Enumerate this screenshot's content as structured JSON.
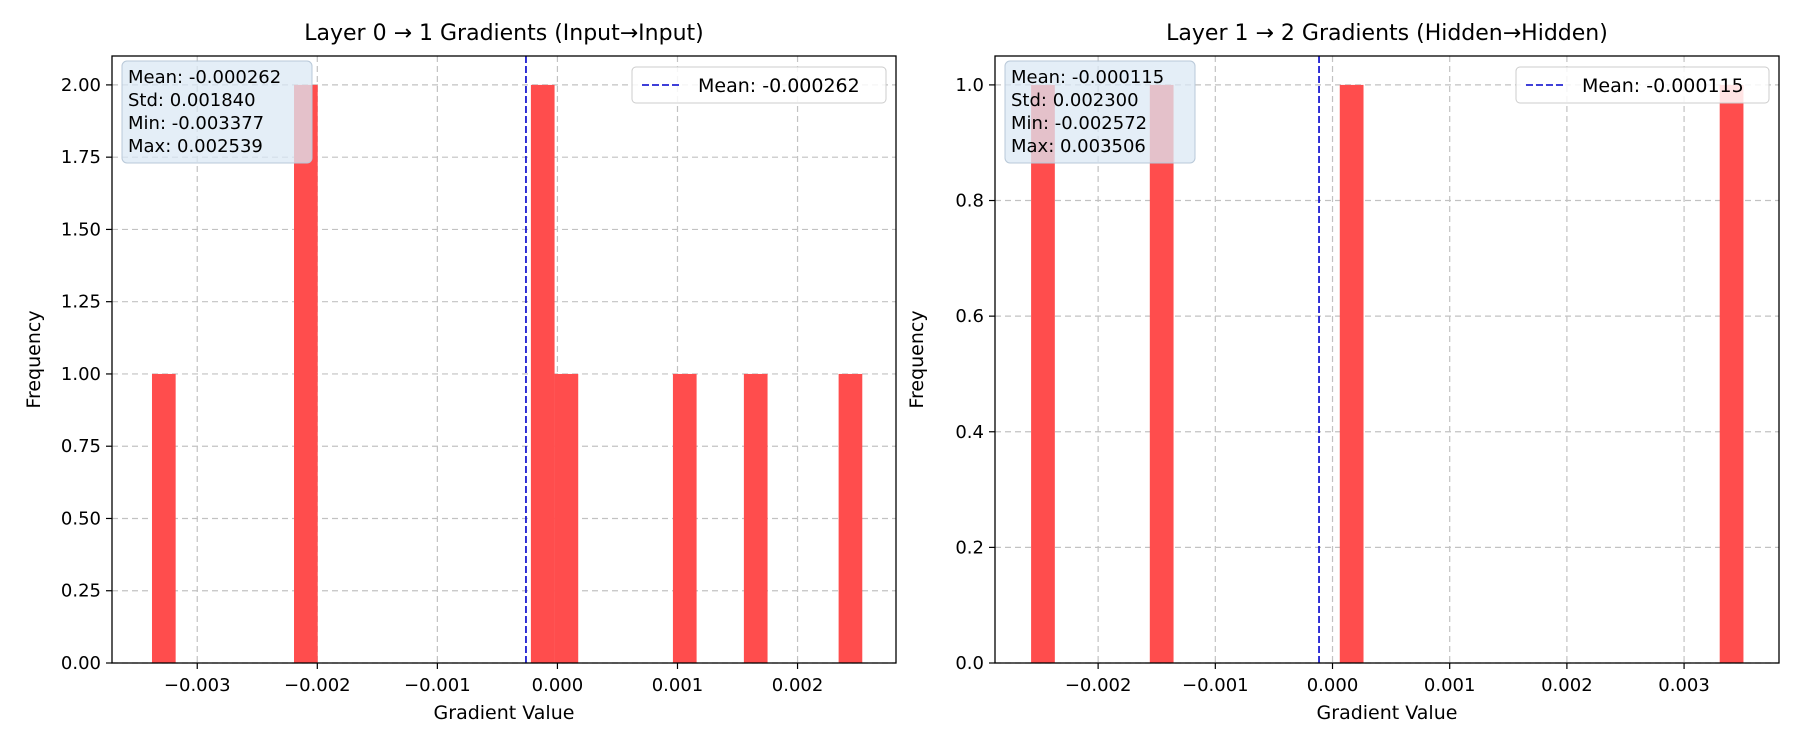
{
  "charts": [
    {
      "id": "left",
      "chart_data": {
        "type": "bar",
        "title": "Layer 0 → 1 Gradients (Input→Input)",
        "xlabel": "Gradient Value",
        "ylabel": "Frequency",
        "xlim": [
          -0.00371,
          0.00282
        ],
        "ylim": [
          0,
          2.1
        ],
        "xticks": [
          -0.003,
          -0.002,
          -0.001,
          0.0,
          0.001,
          0.002
        ],
        "xtick_labels": [
          "−0.003",
          "−0.002",
          "−0.001",
          "0.000",
          "0.001",
          "0.002"
        ],
        "yticks": [
          0,
          0.25,
          0.5,
          0.75,
          1.0,
          1.25,
          1.5,
          1.75,
          2.0
        ],
        "ytick_labels": [
          "0.00",
          "0.25",
          "0.50",
          "0.75",
          "1.00",
          "1.25",
          "1.50",
          "1.75",
          "2.00"
        ],
        "bin_width": 0.0001972,
        "bars": [
          {
            "x0": -0.003377,
            "value": 1
          },
          {
            "x0": -0.002194,
            "value": 2
          },
          {
            "x0": -0.000221,
            "value": 2
          },
          {
            "x0": -2.4e-05,
            "value": 1
          },
          {
            "x0": 0.000962,
            "value": 1
          },
          {
            "x0": 0.001553,
            "value": 1
          },
          {
            "x0": 0.002342,
            "value": 1
          }
        ],
        "mean": -0.000262,
        "legend": "Mean: -0.000262",
        "legend_placement": "upper right",
        "stats": [
          "Mean: -0.000262",
          "Std: 0.001840",
          "Min: -0.003377",
          "Max: 0.002539"
        ],
        "grid": true,
        "colors": {
          "bar": "#ff4d4d",
          "mean_line": "#0000cc",
          "grid": "#c2c2c2",
          "stats_box": "#dbe8f4"
        }
      }
    },
    {
      "id": "right",
      "chart_data": {
        "type": "bar",
        "title": "Layer 1 → 2 Gradients (Hidden→Hidden)",
        "xlabel": "Gradient Value",
        "ylabel": "Frequency",
        "xlim": [
          -0.00288,
          0.00381
        ],
        "ylim": [
          0,
          1.05
        ],
        "xticks": [
          -0.002,
          -0.001,
          0.0,
          0.001,
          0.002,
          0.003
        ],
        "xtick_labels": [
          "−0.002",
          "−0.001",
          "0.000",
          "0.001",
          "0.002",
          "0.003"
        ],
        "yticks": [
          0,
          0.2,
          0.4,
          0.6,
          0.8,
          1.0
        ],
        "ytick_labels": [
          "0.0",
          "0.2",
          "0.4",
          "0.6",
          "0.8",
          "1.0"
        ],
        "bin_width": 0.0002026,
        "bars": [
          {
            "x0": -0.002572,
            "value": 1
          },
          {
            "x0": -0.001559,
            "value": 1
          },
          {
            "x0": 6.2e-05,
            "value": 1
          },
          {
            "x0": 0.003304,
            "value": 1
          }
        ],
        "mean": -0.000115,
        "legend": "Mean: -0.000115",
        "legend_placement": "upper right",
        "stats": [
          "Mean: -0.000115",
          "Std: 0.002300",
          "Min: -0.002572",
          "Max: 0.003506"
        ],
        "grid": true,
        "colors": {
          "bar": "#ff4d4d",
          "mean_line": "#0000cc",
          "grid": "#c2c2c2",
          "stats_box": "#dbe8f4"
        }
      }
    }
  ]
}
